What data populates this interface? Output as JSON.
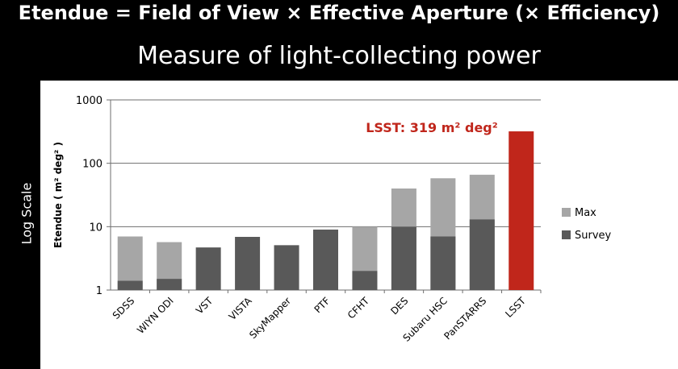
{
  "page": {
    "title": "Etendue = Field of View × Effective Aperture (× Efficiency)",
    "subtitle": "Measure of light-collecting power",
    "side_label": "Log Scale"
  },
  "colors": {
    "max": "#a6a6a6",
    "survey": "#595959",
    "highlight": "#c0261b",
    "annotation": "#c0261b"
  },
  "chart_data": {
    "type": "bar",
    "stacked": "overlay",
    "yscale": "log",
    "ylim": [
      1,
      1000
    ],
    "yticks": [
      1,
      10,
      100,
      1000
    ],
    "ylabel": "Etendue",
    "ylabel_unit": "( m² deg² )",
    "grid": true,
    "legend_position": "right",
    "categories": [
      "SDSS",
      "WIYN ODI",
      "VST",
      "VISTA",
      "SkyMapper",
      "PTF",
      "CFHT",
      "DES",
      "Subaru HSC",
      "PanSTARRS",
      "LSST"
    ],
    "series": [
      {
        "name": "Max",
        "values": [
          7,
          5.7,
          null,
          null,
          null,
          null,
          10,
          40,
          58,
          66,
          null
        ]
      },
      {
        "name": "Survey",
        "values": [
          1.4,
          1.5,
          4.7,
          6.9,
          5.1,
          9,
          2,
          10,
          7,
          13,
          null
        ]
      }
    ],
    "highlight": {
      "category": "LSST",
      "value": 319
    },
    "annotation": "LSST: 319 m² deg²"
  }
}
